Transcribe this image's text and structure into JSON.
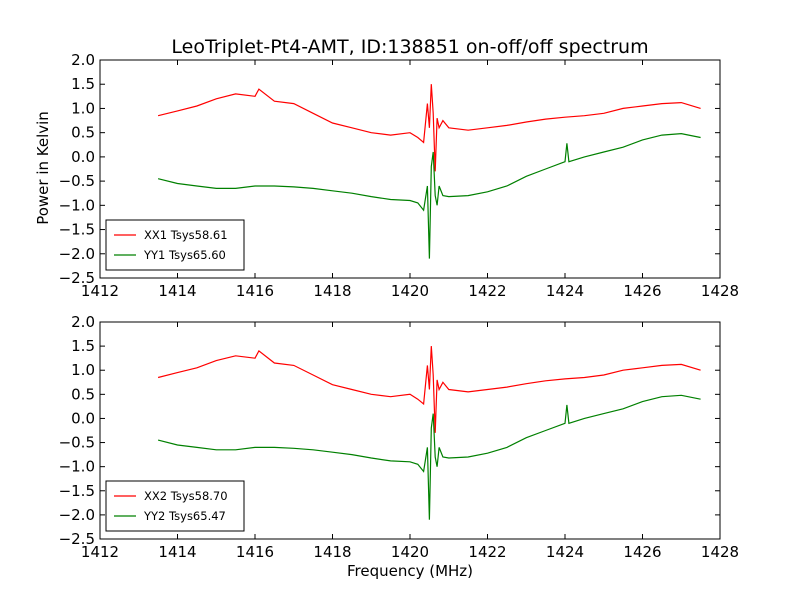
{
  "figure": {
    "title": "LeoTriplet-Pt4-AMT, ID:138851 on-off/off spectrum",
    "xlabel": "Frequency (MHz)",
    "ylabel": "Power in Kelvin"
  },
  "chart_data": [
    {
      "type": "line",
      "title": "LeoTriplet-Pt4-AMT, ID:138851 on-off/off spectrum",
      "xlabel": "",
      "ylabel": "Power in Kelvin",
      "xlim": [
        1412,
        1428
      ],
      "ylim": [
        -2.5,
        2.0
      ],
      "xticks": [
        "1412",
        "1414",
        "1416",
        "1418",
        "1420",
        "1422",
        "1424",
        "1426",
        "1428"
      ],
      "yticks": [
        "2.0",
        "1.5",
        "1.0",
        "0.5",
        "0.0",
        "−0.5",
        "−1.0",
        "−1.5",
        "−2.0",
        "−2.5"
      ],
      "grid": false,
      "legend_position": "lower-left",
      "series": [
        {
          "name": "XX1 Tsys58.61",
          "color": "#ff0000",
          "x": [
            1413.5,
            1414.0,
            1414.5,
            1415.0,
            1415.5,
            1416.0,
            1416.1,
            1416.5,
            1417.0,
            1417.5,
            1418.0,
            1418.5,
            1419.0,
            1419.5,
            1420.0,
            1420.2,
            1420.35,
            1420.45,
            1420.5,
            1420.55,
            1420.6,
            1420.65,
            1420.7,
            1420.75,
            1420.85,
            1421.0,
            1421.5,
            1422.0,
            1422.5,
            1423.0,
            1423.5,
            1424.0,
            1424.5,
            1425.0,
            1425.5,
            1426.0,
            1426.5,
            1427.0,
            1427.5
          ],
          "y": [
            0.85,
            0.95,
            1.05,
            1.2,
            1.3,
            1.25,
            1.4,
            1.15,
            1.1,
            0.9,
            0.7,
            0.6,
            0.5,
            0.45,
            0.5,
            0.4,
            0.3,
            1.1,
            0.6,
            1.5,
            0.9,
            -0.3,
            0.8,
            0.6,
            0.75,
            0.6,
            0.55,
            0.6,
            0.65,
            0.72,
            0.78,
            0.82,
            0.85,
            0.9,
            1.0,
            1.05,
            1.1,
            1.12,
            1.0
          ]
        },
        {
          "name": "YY1 Tsys65.60",
          "color": "#008000",
          "x": [
            1413.5,
            1414.0,
            1414.5,
            1415.0,
            1415.5,
            1416.0,
            1416.5,
            1417.0,
            1417.5,
            1418.0,
            1418.5,
            1419.0,
            1419.5,
            1420.0,
            1420.2,
            1420.35,
            1420.45,
            1420.5,
            1420.55,
            1420.6,
            1420.65,
            1420.7,
            1420.75,
            1420.85,
            1421.0,
            1421.5,
            1422.0,
            1422.5,
            1423.0,
            1423.5,
            1424.0,
            1424.05,
            1424.1,
            1424.5,
            1425.0,
            1425.5,
            1426.0,
            1426.5,
            1427.0,
            1427.5
          ],
          "y": [
            -0.45,
            -0.55,
            -0.6,
            -0.65,
            -0.65,
            -0.6,
            -0.6,
            -0.62,
            -0.65,
            -0.7,
            -0.75,
            -0.82,
            -0.88,
            -0.9,
            -0.95,
            -1.1,
            -0.6,
            -2.1,
            -0.2,
            0.1,
            -0.8,
            -1.0,
            -0.6,
            -0.8,
            -0.82,
            -0.8,
            -0.72,
            -0.6,
            -0.4,
            -0.25,
            -0.1,
            0.28,
            -0.1,
            0.0,
            0.1,
            0.2,
            0.35,
            0.45,
            0.48,
            0.4
          ]
        }
      ]
    },
    {
      "type": "line",
      "title": "",
      "xlabel": "Frequency (MHz)",
      "ylabel": "",
      "xlim": [
        1412,
        1428
      ],
      "ylim": [
        -2.5,
        2.0
      ],
      "xticks": [
        "1412",
        "1414",
        "1416",
        "1418",
        "1420",
        "1422",
        "1424",
        "1426",
        "1428"
      ],
      "yticks": [
        "2.0",
        "1.5",
        "1.0",
        "0.5",
        "0.0",
        "−0.5",
        "−1.0",
        "−1.5",
        "−2.0",
        "−2.5"
      ],
      "grid": false,
      "legend_position": "lower-left",
      "series": [
        {
          "name": "XX2 Tsys58.70",
          "color": "#ff0000",
          "x": [
            1413.5,
            1414.0,
            1414.5,
            1415.0,
            1415.5,
            1416.0,
            1416.1,
            1416.5,
            1417.0,
            1417.5,
            1418.0,
            1418.5,
            1419.0,
            1419.5,
            1420.0,
            1420.2,
            1420.35,
            1420.45,
            1420.5,
            1420.55,
            1420.6,
            1420.65,
            1420.7,
            1420.75,
            1420.85,
            1421.0,
            1421.5,
            1422.0,
            1422.5,
            1423.0,
            1423.5,
            1424.0,
            1424.5,
            1425.0,
            1425.5,
            1426.0,
            1426.5,
            1427.0,
            1427.5
          ],
          "y": [
            0.85,
            0.95,
            1.05,
            1.2,
            1.3,
            1.25,
            1.4,
            1.15,
            1.1,
            0.9,
            0.7,
            0.6,
            0.5,
            0.45,
            0.5,
            0.4,
            0.3,
            1.1,
            0.6,
            1.5,
            0.9,
            -0.3,
            0.8,
            0.6,
            0.75,
            0.6,
            0.55,
            0.6,
            0.65,
            0.72,
            0.78,
            0.82,
            0.85,
            0.9,
            1.0,
            1.05,
            1.1,
            1.12,
            1.0
          ]
        },
        {
          "name": "YY2 Tsys65.47",
          "color": "#008000",
          "x": [
            1413.5,
            1414.0,
            1414.5,
            1415.0,
            1415.5,
            1416.0,
            1416.5,
            1417.0,
            1417.5,
            1418.0,
            1418.5,
            1419.0,
            1419.5,
            1420.0,
            1420.2,
            1420.35,
            1420.45,
            1420.5,
            1420.55,
            1420.6,
            1420.65,
            1420.7,
            1420.75,
            1420.85,
            1421.0,
            1421.5,
            1422.0,
            1422.5,
            1423.0,
            1423.5,
            1424.0,
            1424.05,
            1424.1,
            1424.5,
            1425.0,
            1425.5,
            1426.0,
            1426.5,
            1427.0,
            1427.5
          ],
          "y": [
            -0.45,
            -0.55,
            -0.6,
            -0.65,
            -0.65,
            -0.6,
            -0.6,
            -0.62,
            -0.65,
            -0.7,
            -0.75,
            -0.82,
            -0.88,
            -0.9,
            -0.95,
            -1.1,
            -0.6,
            -2.1,
            -0.2,
            0.1,
            -0.8,
            -1.0,
            -0.6,
            -0.8,
            -0.82,
            -0.8,
            -0.72,
            -0.6,
            -0.4,
            -0.25,
            -0.1,
            0.28,
            -0.1,
            0.0,
            0.1,
            0.2,
            0.35,
            0.45,
            0.48,
            0.4
          ]
        }
      ]
    }
  ]
}
